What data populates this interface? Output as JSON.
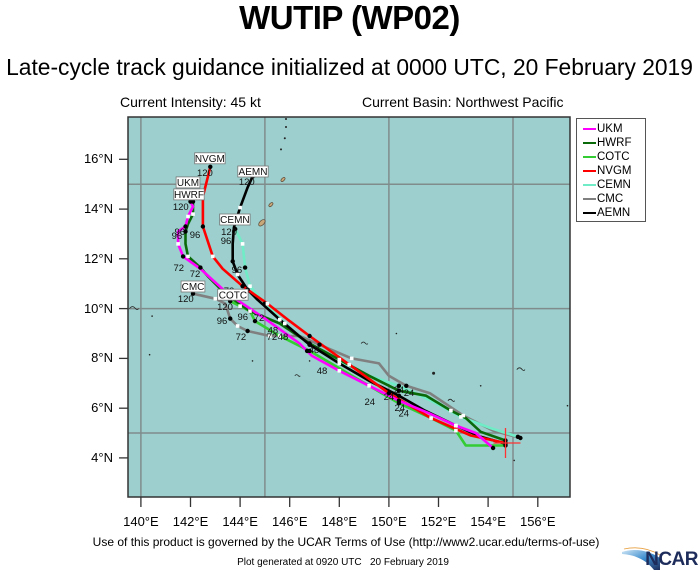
{
  "header": {
    "title": "WUTIP (WP02)",
    "subtitle": "Late-cycle track guidance initialized at 0000 UTC, 20 February 2019",
    "intensity": "Current Intensity: 45 kt",
    "basin": "Current Basin: Northwest Pacific"
  },
  "footer": {
    "terms": "Use of this product is governed by the UCAR Terms of Use (http://www2.ucar.edu/terms-of-use)",
    "generated": "Plot generated at 0920 UTC   20 February 2019",
    "logo": "NCAR"
  },
  "chart_data": {
    "type": "line",
    "title": "WUTIP (WP02)",
    "subtitle": "Late-cycle track guidance initialized at 0000 UTC, 20 February 2019",
    "xlabel": "",
    "ylabel": "",
    "xlim": [
      139.48,
      157.3
    ],
    "ylim": [
      2.43,
      17.7
    ],
    "x_ticks": [
      140,
      142,
      144,
      146,
      148,
      150,
      152,
      154,
      156
    ],
    "x_tick_labels": [
      "140°E",
      "142°E",
      "144°E",
      "146°E",
      "148°E",
      "150°E",
      "152°E",
      "154°E",
      "156°E"
    ],
    "y_ticks": [
      4,
      6,
      8,
      10,
      12,
      14,
      16
    ],
    "y_tick_labels": [
      "4°N",
      "6°N",
      "8°N",
      "10°N",
      "12°N",
      "14°N",
      "16°N"
    ],
    "grid": {
      "on": true,
      "lon": [
        140,
        145,
        150,
        155
      ],
      "lat": [
        5,
        10,
        15
      ],
      "color": "#808c8c"
    },
    "background_color": "#9ccfcd",
    "legend_position": "right-outside",
    "current_position": {
      "lat": 4.6,
      "lon": 154.7,
      "color": "#ff3333"
    },
    "forecast_hours": [
      0,
      24,
      48,
      72,
      96,
      120
    ],
    "series": [
      {
        "name": "UKM",
        "color": "#ff00ff",
        "path": [
          [
            154.2,
            4.4
          ],
          [
            153.5,
            5.0
          ],
          [
            152.7,
            5.3
          ],
          [
            151.6,
            5.8
          ],
          [
            150.4,
            6.3
          ],
          [
            149.2,
            6.9
          ],
          [
            148.0,
            7.5
          ],
          [
            146.9,
            8.1
          ],
          [
            146.4,
            8.6
          ],
          [
            145.0,
            9.6
          ],
          [
            143.5,
            10.6
          ],
          [
            142.4,
            11.6
          ],
          [
            141.7,
            12.1
          ],
          [
            141.5,
            12.6
          ],
          [
            141.5,
            13.1
          ],
          [
            141.8,
            13.3
          ],
          [
            141.9,
            13.7
          ],
          [
            142.1,
            14.1
          ],
          [
            142.0,
            14.3
          ]
        ],
        "fixes": [
          [
            154.2,
            4.4
          ],
          [
            150.4,
            6.3
          ],
          [
            146.7,
            8.3
          ],
          [
            141.7,
            12.1
          ],
          [
            141.8,
            13.3
          ],
          [
            142.0,
            14.3
          ]
        ]
      },
      {
        "name": "HWRF",
        "color": "#0a6a0a",
        "path": [
          [
            154.7,
            4.7
          ],
          [
            153.7,
            5.05
          ],
          [
            153.1,
            5.6
          ],
          [
            152.5,
            5.9
          ],
          [
            151.5,
            6.5
          ],
          [
            150.4,
            6.7
          ],
          [
            149.2,
            7.3
          ],
          [
            148.0,
            7.95
          ],
          [
            146.8,
            8.6
          ],
          [
            145.6,
            9.4
          ],
          [
            144.4,
            9.9
          ],
          [
            143.4,
            10.6
          ],
          [
            142.7,
            11.3
          ],
          [
            142.4,
            11.65
          ],
          [
            141.9,
            12.1
          ],
          [
            141.8,
            12.6
          ],
          [
            141.8,
            13.1
          ],
          [
            141.9,
            13.4
          ],
          [
            142.1,
            13.8
          ],
          [
            142.1,
            14.1
          ],
          [
            142.1,
            14.3
          ]
        ],
        "fixes": [
          [
            154.7,
            4.7
          ],
          [
            150.4,
            6.7
          ],
          [
            146.8,
            8.6
          ],
          [
            142.4,
            11.65
          ],
          [
            141.8,
            13.1
          ],
          [
            142.1,
            14.3
          ]
        ]
      },
      {
        "name": "COTC",
        "color": "#33cc33",
        "path": [
          [
            154.7,
            4.5
          ],
          [
            153.1,
            4.5
          ],
          [
            152.7,
            5.1
          ],
          [
            151.7,
            5.6
          ],
          [
            150.4,
            6.2
          ],
          [
            149.2,
            6.9
          ],
          [
            148.0,
            7.6
          ],
          [
            146.8,
            8.3
          ],
          [
            145.6,
            8.9
          ],
          [
            144.6,
            9.5
          ],
          [
            144.4,
            9.9
          ],
          [
            144.0,
            10.1
          ],
          [
            143.6,
            10.3
          ],
          [
            143.7,
            10.6
          ],
          [
            143.9,
            10.6
          ]
        ],
        "fixes": [
          [
            154.7,
            4.5
          ],
          [
            150.4,
            6.2
          ],
          [
            146.8,
            8.3
          ],
          [
            144.6,
            9.5
          ],
          [
            144.4,
            9.9
          ],
          [
            143.6,
            10.3
          ]
        ]
      },
      {
        "name": "NVGM",
        "color": "#ff0000",
        "path": [
          [
            154.7,
            4.6
          ],
          [
            153.3,
            4.9
          ],
          [
            151.7,
            5.6
          ],
          [
            150.0,
            6.6
          ],
          [
            148.4,
            7.75
          ],
          [
            146.8,
            8.9
          ],
          [
            146.0,
            9.5
          ],
          [
            145.1,
            10.2
          ],
          [
            144.1,
            10.9
          ],
          [
            143.3,
            11.6
          ],
          [
            142.9,
            12.1
          ],
          [
            142.5,
            13.3
          ],
          [
            142.5,
            14.5
          ],
          [
            142.7,
            15.3
          ],
          [
            142.8,
            15.7
          ]
        ],
        "fixes": [
          [
            154.7,
            4.6
          ],
          [
            150.0,
            6.6
          ],
          [
            146.8,
            8.9
          ],
          [
            144.1,
            10.9
          ],
          [
            142.5,
            13.3
          ],
          [
            142.8,
            15.7
          ]
        ]
      },
      {
        "name": "CEMN",
        "color": "#70ecc6",
        "path": [
          [
            155.2,
            4.85
          ],
          [
            154.1,
            5.2
          ],
          [
            152.9,
            5.65
          ],
          [
            151.7,
            6.3
          ],
          [
            150.4,
            6.9
          ],
          [
            149.2,
            7.3
          ],
          [
            148.0,
            7.9
          ],
          [
            146.8,
            8.55
          ],
          [
            145.8,
            9.4
          ],
          [
            145.0,
            10.2
          ],
          [
            144.4,
            10.9
          ],
          [
            144.2,
            11.65
          ],
          [
            144.1,
            12.6
          ],
          [
            143.8,
            13.2
          ]
        ],
        "fixes": [
          [
            155.2,
            4.85
          ],
          [
            150.4,
            6.9
          ],
          [
            146.8,
            8.55
          ],
          [
            145.0,
            10.2
          ],
          [
            144.2,
            11.65
          ],
          [
            143.8,
            13.2
          ]
        ]
      },
      {
        "name": "CMC",
        "color": "#808080",
        "path": [
          [
            155.3,
            4.8
          ],
          [
            154.2,
            5.1
          ],
          [
            153.0,
            5.7
          ],
          [
            151.65,
            6.6
          ],
          [
            150.7,
            6.9
          ],
          [
            150.0,
            7.3
          ],
          [
            149.6,
            7.8
          ],
          [
            148.5,
            8.0
          ],
          [
            147.2,
            8.55
          ],
          [
            146.4,
            8.9
          ],
          [
            145.2,
            8.9
          ],
          [
            144.3,
            9.1
          ],
          [
            143.9,
            9.3
          ],
          [
            143.6,
            9.6
          ],
          [
            143.4,
            10.2
          ],
          [
            143.0,
            10.4
          ],
          [
            142.1,
            10.6
          ]
        ],
        "fixes": [
          [
            155.3,
            4.8
          ],
          [
            150.7,
            6.9
          ],
          [
            147.2,
            8.55
          ],
          [
            144.3,
            9.1
          ],
          [
            143.6,
            9.6
          ],
          [
            142.1,
            10.6
          ]
        ]
      },
      {
        "name": "AEMN",
        "color": "#000000",
        "path": [
          [
            154.7,
            4.57
          ],
          [
            153.7,
            4.85
          ],
          [
            152.7,
            5.3
          ],
          [
            151.45,
            5.9
          ],
          [
            150.4,
            6.5
          ],
          [
            149.2,
            7.1
          ],
          [
            148.0,
            7.8
          ],
          [
            146.8,
            8.55
          ],
          [
            145.6,
            9.56
          ],
          [
            144.7,
            10.36
          ],
          [
            144.3,
            10.76
          ],
          [
            143.9,
            11.37
          ],
          [
            143.7,
            11.9
          ],
          [
            143.7,
            12.6
          ],
          [
            143.75,
            13.26
          ],
          [
            144.0,
            14.06
          ],
          [
            144.3,
            14.87
          ],
          [
            144.5,
            15.3
          ]
        ],
        "fixes": [
          [
            154.7,
            4.57
          ],
          [
            150.4,
            6.5
          ],
          [
            146.8,
            8.55
          ],
          [
            144.3,
            10.76
          ],
          [
            143.7,
            11.9
          ],
          [
            144.5,
            15.3
          ]
        ]
      }
    ],
    "draw_order": [
      "CMC",
      "CEMN",
      "COTC",
      "HWRF",
      "AEMN",
      "NVGM",
      "UKM"
    ],
    "model_labels": [
      {
        "text": "NVGM",
        "lon": 142.78,
        "lat": 16.04
      },
      {
        "text": "AEMN",
        "lon": 144.52,
        "lat": 15.51
      },
      {
        "text": "UKM",
        "lon": 141.9,
        "lat": 15.07
      },
      {
        "text": "HWRF",
        "lon": 141.94,
        "lat": 14.59
      },
      {
        "text": "CEMN",
        "lon": 143.79,
        "lat": 13.58
      },
      {
        "text": "CMC",
        "lon": 142.1,
        "lat": 10.89
      },
      {
        "text": "COTC",
        "lon": 143.71,
        "lat": 10.56
      }
    ],
    "hour_labels": [
      {
        "text": "120",
        "lon": 142.58,
        "lat": 15.47
      },
      {
        "text": "120",
        "lon": 144.27,
        "lat": 15.11
      },
      {
        "text": "120",
        "lon": 141.61,
        "lat": 14.1
      },
      {
        "text": "96",
        "lon": 141.57,
        "lat": 13.1
      },
      {
        "text": "96",
        "lon": 141.45,
        "lat": 12.94
      },
      {
        "text": "96",
        "lon": 142.18,
        "lat": 12.98
      },
      {
        "text": "120",
        "lon": 143.55,
        "lat": 13.1
      },
      {
        "text": "96",
        "lon": 143.43,
        "lat": 12.74
      },
      {
        "text": "96",
        "lon": 143.87,
        "lat": 11.57
      },
      {
        "text": "72",
        "lon": 141.53,
        "lat": 11.65
      },
      {
        "text": "72",
        "lon": 142.18,
        "lat": 11.41
      },
      {
        "text": "72",
        "lon": 143.55,
        "lat": 10.72
      },
      {
        "text": "120",
        "lon": 141.81,
        "lat": 10.4
      },
      {
        "text": "120",
        "lon": 143.39,
        "lat": 10.08
      },
      {
        "text": "96",
        "lon": 143.27,
        "lat": 9.52
      },
      {
        "text": "96",
        "lon": 144.11,
        "lat": 9.68
      },
      {
        "text": "72",
        "lon": 144.76,
        "lat": 9.64
      },
      {
        "text": "72",
        "lon": 144.03,
        "lat": 8.87
      },
      {
        "text": "72",
        "lon": 145.28,
        "lat": 8.87
      },
      {
        "text": "48",
        "lon": 145.73,
        "lat": 8.87
      },
      {
        "text": "48",
        "lon": 145.32,
        "lat": 9.15
      },
      {
        "text": "48",
        "lon": 146.98,
        "lat": 8.35
      },
      {
        "text": "48",
        "lon": 147.3,
        "lat": 7.51
      },
      {
        "text": "24",
        "lon": 149.23,
        "lat": 6.26
      },
      {
        "text": "24",
        "lon": 150.0,
        "lat": 6.46
      },
      {
        "text": "24",
        "lon": 150.4,
        "lat": 6.74
      },
      {
        "text": "24",
        "lon": 150.81,
        "lat": 6.62
      },
      {
        "text": "24",
        "lon": 150.44,
        "lat": 6.02
      },
      {
        "text": "24",
        "lon": 150.6,
        "lat": 5.81
      }
    ],
    "islands": [
      {
        "lon": 144.88,
        "lat": 13.45,
        "size": 4,
        "kind": "land"
      },
      {
        "lon": 145.24,
        "lat": 14.18,
        "size": 2.5,
        "kind": "land"
      },
      {
        "lon": 145.73,
        "lat": 15.19,
        "size": 2.5,
        "kind": "land"
      },
      {
        "lon": 145.65,
        "lat": 16.4,
        "size": 1,
        "kind": "dot"
      },
      {
        "lon": 145.85,
        "lat": 17.3,
        "size": 1,
        "kind": "dot"
      },
      {
        "lon": 145.85,
        "lat": 17.62,
        "size": 1,
        "kind": "dot"
      },
      {
        "lon": 145.8,
        "lat": 16.85,
        "size": 1,
        "kind": "dot"
      },
      {
        "lon": 139.7,
        "lat": 10.0,
        "size": 2,
        "kind": "atoll"
      },
      {
        "lon": 140.45,
        "lat": 9.7,
        "size": 0.8,
        "kind": "dot"
      },
      {
        "lon": 140.35,
        "lat": 8.15,
        "size": 0.8,
        "kind": "dot"
      },
      {
        "lon": 144.5,
        "lat": 7.9,
        "size": 0.8,
        "kind": "dot"
      },
      {
        "lon": 146.3,
        "lat": 7.3,
        "size": 1.2,
        "kind": "atoll"
      },
      {
        "lon": 146.8,
        "lat": 7.9,
        "size": 0.8,
        "kind": "dot"
      },
      {
        "lon": 149.0,
        "lat": 8.6,
        "size": 1.5,
        "kind": "atoll"
      },
      {
        "lon": 150.3,
        "lat": 9.0,
        "size": 0.8,
        "kind": "dot"
      },
      {
        "lon": 151.8,
        "lat": 7.4,
        "size": 1.5,
        "kind": "dot"
      },
      {
        "lon": 152.5,
        "lat": 6.3,
        "size": 1.5,
        "kind": "atoll"
      },
      {
        "lon": 153.7,
        "lat": 6.9,
        "size": 0.8,
        "kind": "dot"
      },
      {
        "lon": 155.3,
        "lat": 7.55,
        "size": 1.8,
        "kind": "atoll"
      },
      {
        "lon": 155.05,
        "lat": 3.9,
        "size": 0.8,
        "kind": "dot"
      },
      {
        "lon": 157.2,
        "lat": 6.1,
        "size": 0.8,
        "kind": "dot"
      }
    ]
  }
}
